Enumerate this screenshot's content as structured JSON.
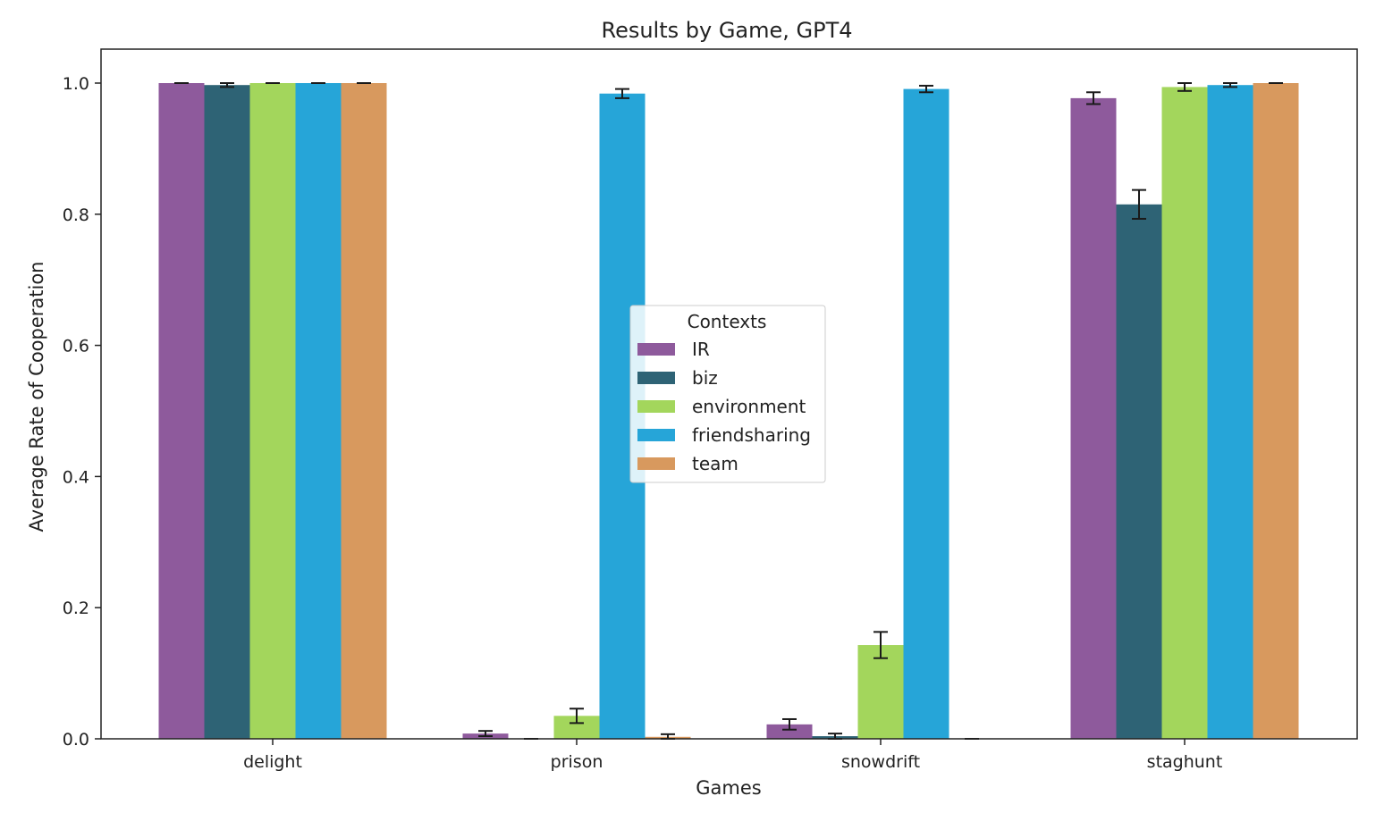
{
  "chart_data": {
    "type": "bar",
    "title": "Results by Game, GPT4",
    "xlabel": "Games",
    "ylabel": "Average Rate of Cooperation",
    "categories": [
      "delight",
      "prison",
      "snowdrift",
      "staghunt"
    ],
    "ylim": [
      0,
      1.05
    ],
    "yticks": [
      "0.0",
      "0.2",
      "0.4",
      "0.6",
      "0.8",
      "1.0"
    ],
    "grid": false,
    "legend": {
      "title": "Contexts",
      "placement": "center"
    },
    "series": [
      {
        "name": "IR",
        "color": "#8e5a9c",
        "values": [
          1.0,
          0.008,
          0.022,
          0.977
        ],
        "errors": [
          0.0,
          0.004,
          0.008,
          0.009
        ]
      },
      {
        "name": "biz",
        "color": "#2e6375",
        "values": [
          0.997,
          0.0,
          0.004,
          0.815
        ],
        "errors": [
          0.003,
          0.0,
          0.004,
          0.022
        ]
      },
      {
        "name": "environment",
        "color": "#a3d65c",
        "values": [
          1.0,
          0.035,
          0.143,
          0.994
        ],
        "errors": [
          0.0,
          0.011,
          0.02,
          0.006
        ]
      },
      {
        "name": "friendsharing",
        "color": "#26a5d8",
        "values": [
          1.0,
          0.984,
          0.991,
          0.997
        ],
        "errors": [
          0.0,
          0.007,
          0.005,
          0.003
        ]
      },
      {
        "name": "team",
        "color": "#d8995e",
        "values": [
          1.0,
          0.003,
          0.0,
          1.0
        ],
        "errors": [
          0.0,
          0.004,
          0.0,
          0.0
        ]
      }
    ]
  }
}
